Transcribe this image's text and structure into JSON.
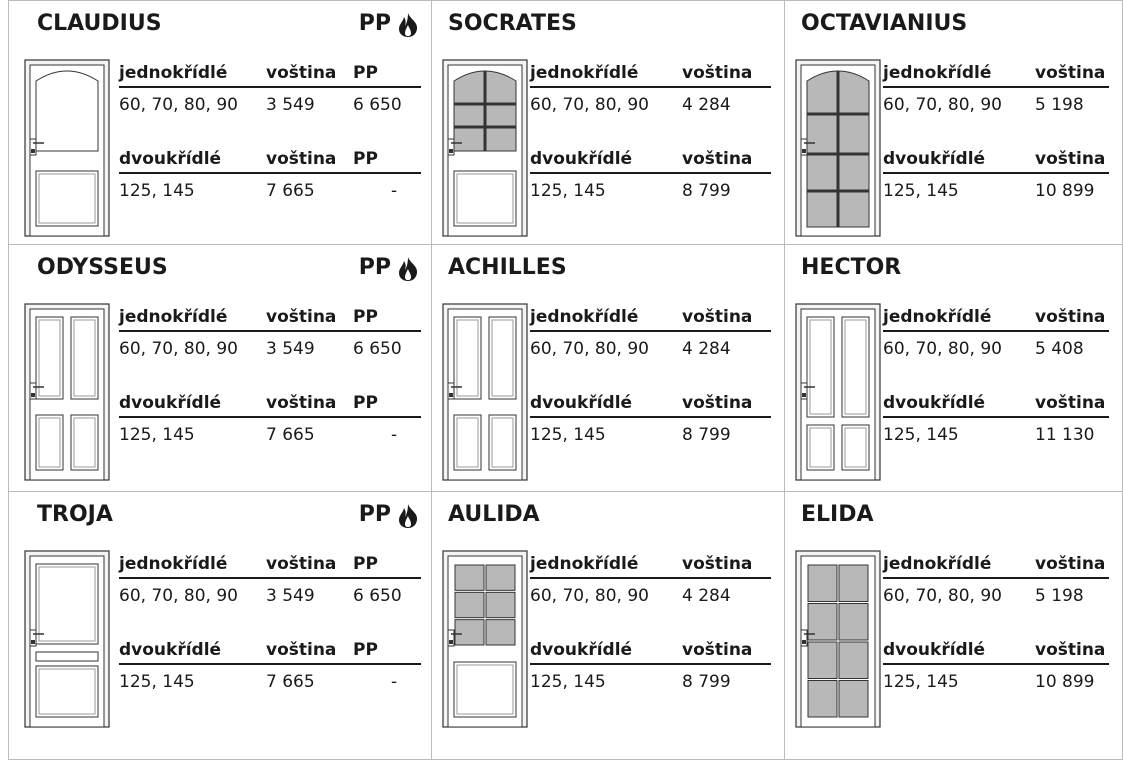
{
  "cells": [
    {
      "name": "CLAUDIUS",
      "badge": "PP",
      "single": {
        "header": [
          "jednokřídlé",
          "voština",
          "PP"
        ],
        "row": [
          "60, 70, 80, 90",
          "3 549",
          "6 650"
        ]
      },
      "double": {
        "header": [
          "dvoukřídlé",
          "voština",
          "PP"
        ],
        "row": [
          "125, 145",
          "7 665",
          "-"
        ]
      }
    },
    {
      "name": "SOCRATES",
      "single": {
        "header": [
          "jednokřídlé",
          "voština"
        ],
        "row": [
          "60, 70, 80, 90",
          "4 284"
        ]
      },
      "double": {
        "header": [
          "dvoukřídlé",
          "voština"
        ],
        "row": [
          "125, 145",
          "8 799"
        ]
      }
    },
    {
      "name": "OCTAVIANIUS",
      "single": {
        "header": [
          "jednokřídlé",
          "voština"
        ],
        "row": [
          "60, 70, 80, 90",
          "5 198"
        ]
      },
      "double": {
        "header": [
          "dvoukřídlé",
          "voština"
        ],
        "row": [
          "125, 145",
          "10 899"
        ]
      }
    },
    {
      "name": "ODYSSEUS",
      "badge": "PP",
      "single": {
        "header": [
          "jednokřídlé",
          "voština",
          "PP"
        ],
        "row": [
          "60, 70, 80, 90",
          "3 549",
          "6 650"
        ]
      },
      "double": {
        "header": [
          "dvoukřídlé",
          "voština",
          "PP"
        ],
        "row": [
          "125, 145",
          "7 665",
          "-"
        ]
      }
    },
    {
      "name": "ACHILLES",
      "single": {
        "header": [
          "jednokřídlé",
          "voština"
        ],
        "row": [
          "60, 70, 80, 90",
          "4 284"
        ]
      },
      "double": {
        "header": [
          "dvoukřídlé",
          "voština"
        ],
        "row": [
          "125, 145",
          "8 799"
        ]
      }
    },
    {
      "name": "HECTOR",
      "single": {
        "header": [
          "jednokřídlé",
          "voština"
        ],
        "row": [
          "60, 70, 80, 90",
          "5 408"
        ]
      },
      "double": {
        "header": [
          "dvoukřídlé",
          "voština"
        ],
        "row": [
          "125, 145",
          "11 130"
        ]
      }
    },
    {
      "name": "TROJA",
      "badge": "PP",
      "single": {
        "header": [
          "jednokřídlé",
          "voština",
          "PP"
        ],
        "row": [
          "60, 70, 80, 90",
          "3 549",
          "6 650"
        ]
      },
      "double": {
        "header": [
          "dvoukřídlé",
          "voština",
          "PP"
        ],
        "row": [
          "125, 145",
          "7 665",
          "-"
        ]
      }
    },
    {
      "name": "AULIDA",
      "single": {
        "header": [
          "jednokřídlé",
          "voština"
        ],
        "row": [
          "60, 70, 80, 90",
          "4 284"
        ]
      },
      "double": {
        "header": [
          "dvoukřídlé",
          "voština"
        ],
        "row": [
          "125, 145",
          "8 799"
        ]
      }
    },
    {
      "name": "ELIDA",
      "single": {
        "header": [
          "jednokřídlé",
          "voština"
        ],
        "row": [
          "60, 70, 80, 90",
          "5 198"
        ]
      },
      "double": {
        "header": [
          "dvoukřídlé",
          "voština"
        ],
        "row": [
          "125, 145",
          "10 899"
        ]
      }
    }
  ]
}
